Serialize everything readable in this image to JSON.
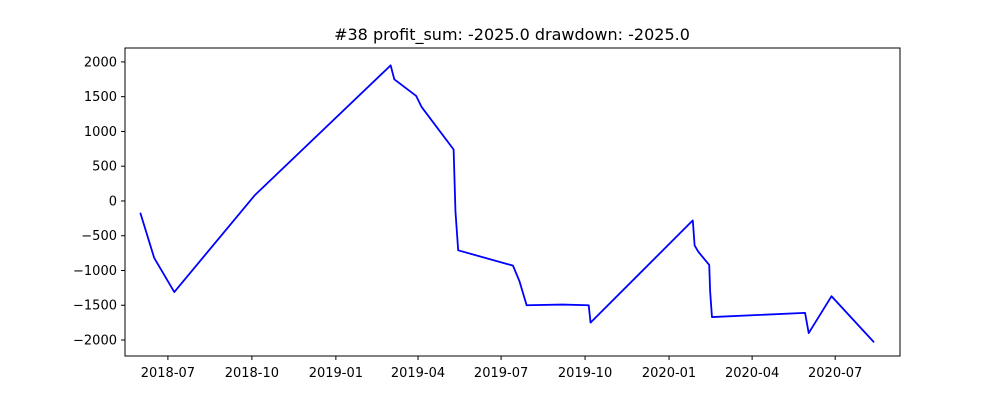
{
  "chart_data": {
    "type": "line",
    "title": "#38   profit_sum: -2025.0 drawdown: -2025.0",
    "xlabel": "",
    "ylabel": "",
    "x_axis": "date",
    "xlim": [
      "2018-05-15",
      "2020-09-10"
    ],
    "ylim": [
      -2230,
      2200
    ],
    "grid": false,
    "legend": "none",
    "x_ticks": [
      {
        "date": "2018-07-01",
        "label": "2018-07"
      },
      {
        "date": "2018-10-01",
        "label": "2018-10"
      },
      {
        "date": "2019-01-01",
        "label": "2019-01"
      },
      {
        "date": "2019-04-01",
        "label": "2019-04"
      },
      {
        "date": "2019-07-01",
        "label": "2019-07"
      },
      {
        "date": "2019-10-01",
        "label": "2019-10"
      },
      {
        "date": "2020-01-01",
        "label": "2020-01"
      },
      {
        "date": "2020-04-01",
        "label": "2020-04"
      },
      {
        "date": "2020-07-01",
        "label": "2020-07"
      }
    ],
    "y_ticks": [
      {
        "value": 2000,
        "label": "2000"
      },
      {
        "value": 1500,
        "label": "1500"
      },
      {
        "value": 1000,
        "label": "1000"
      },
      {
        "value": 500,
        "label": "500"
      },
      {
        "value": 0,
        "label": "0"
      },
      {
        "value": -500,
        "label": "−500"
      },
      {
        "value": -1000,
        "label": "−1000"
      },
      {
        "value": -1500,
        "label": "−1500"
      },
      {
        "value": -2000,
        "label": "−2000"
      }
    ],
    "series": [
      {
        "color": "#0000ff",
        "points": [
          [
            "2018-06-01",
            -180
          ],
          [
            "2018-06-16",
            -820
          ],
          [
            "2018-07-08",
            -1310
          ],
          [
            "2018-10-04",
            80
          ],
          [
            "2019-03-02",
            1950
          ],
          [
            "2019-03-06",
            1750
          ],
          [
            "2019-03-30",
            1510
          ],
          [
            "2019-04-05",
            1350
          ],
          [
            "2019-05-10",
            740
          ],
          [
            "2019-05-12",
            -150
          ],
          [
            "2019-05-15",
            -710
          ],
          [
            "2019-07-14",
            -930
          ],
          [
            "2019-07-21",
            -1150
          ],
          [
            "2019-07-29",
            -1500
          ],
          [
            "2019-09-06",
            -1490
          ],
          [
            "2019-10-05",
            -1500
          ],
          [
            "2019-10-07",
            -1750
          ],
          [
            "2020-01-27",
            -280
          ],
          [
            "2020-01-29",
            -640
          ],
          [
            "2020-02-02",
            -730
          ],
          [
            "2020-02-14",
            -920
          ],
          [
            "2020-02-15",
            -1300
          ],
          [
            "2020-02-17",
            -1670
          ],
          [
            "2020-05-29",
            -1610
          ],
          [
            "2020-06-02",
            -1900
          ],
          [
            "2020-06-27",
            -1370
          ],
          [
            "2020-08-12",
            -2025
          ]
        ]
      }
    ]
  }
}
